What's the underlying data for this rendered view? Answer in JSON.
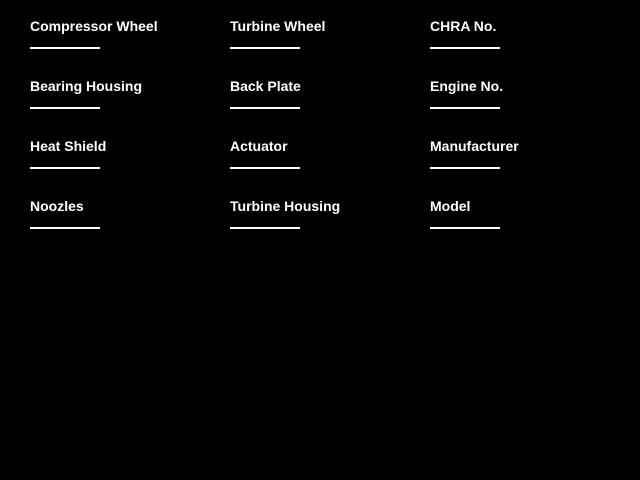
{
  "app": {
    "background_color": "#000000",
    "text_color": "#ffffff",
    "line_color": "#ffffff"
  },
  "fields": [
    {
      "label": "Compressor Wheel",
      "value": ""
    },
    {
      "label": "Bearing Housing",
      "value": ""
    },
    {
      "label": "Heat Shield",
      "value": ""
    },
    {
      "label": "Noozles",
      "value": ""
    },
    {
      "label": "Turbine Wheel",
      "value": ""
    },
    {
      "label": "Back Plate",
      "value": ""
    },
    {
      "label": "Actuator",
      "value": ""
    },
    {
      "label": "Turbine Housing",
      "value": ""
    },
    {
      "label": "CHRA No.",
      "value": ""
    },
    {
      "label": "Engine No.",
      "value": ""
    },
    {
      "label": "Manufacturer",
      "value": ""
    },
    {
      "label": "Model",
      "value": ""
    }
  ]
}
